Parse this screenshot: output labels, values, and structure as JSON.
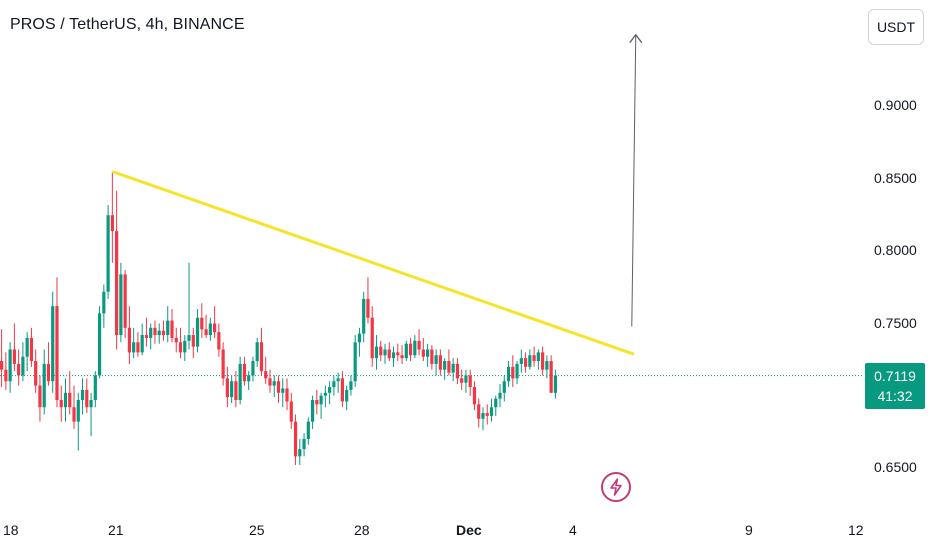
{
  "header": {
    "title": "PROS / TetherUS, 4h, BINANCE"
  },
  "currency_button": {
    "label": "USDT"
  },
  "price_badge": {
    "price": "0.7119",
    "countdown": "41:32"
  },
  "colors": {
    "up": "#089981",
    "down": "#f23645",
    "trendline": "#f5e42c",
    "arrow": "#ffffff",
    "arrow_stroke": "#5d606b"
  },
  "chart_data": {
    "type": "candlestick",
    "title": "PROS / TetherUS, 4h, BINANCE",
    "y_ticks": [
      "0.9000",
      "0.8500",
      "0.8000",
      "0.7500",
      "0.6500"
    ],
    "x_ticks": [
      "18",
      "21",
      "25",
      "28",
      "Dec",
      "4",
      "9",
      "12"
    ],
    "ylim": [
      0.633,
      0.97
    ],
    "last_price": 0.7119,
    "candles_ohlc": [
      [
        0.722,
        0.744,
        0.704,
        0.716
      ],
      [
        0.716,
        0.728,
        0.702,
        0.708
      ],
      [
        0.708,
        0.735,
        0.7,
        0.73
      ],
      [
        0.73,
        0.748,
        0.715,
        0.72
      ],
      [
        0.72,
        0.73,
        0.705,
        0.712
      ],
      [
        0.712,
        0.735,
        0.708,
        0.725
      ],
      [
        0.725,
        0.742,
        0.715,
        0.738
      ],
      [
        0.738,
        0.745,
        0.718,
        0.722
      ],
      [
        0.722,
        0.73,
        0.7,
        0.705
      ],
      [
        0.705,
        0.712,
        0.68,
        0.69
      ],
      [
        0.69,
        0.73,
        0.685,
        0.72
      ],
      [
        0.72,
        0.735,
        0.705,
        0.708
      ],
      [
        0.708,
        0.77,
        0.7,
        0.76
      ],
      [
        0.76,
        0.78,
        0.69,
        0.695
      ],
      [
        0.695,
        0.705,
        0.68,
        0.69
      ],
      [
        0.69,
        0.71,
        0.68,
        0.7
      ],
      [
        0.7,
        0.715,
        0.685,
        0.69
      ],
      [
        0.69,
        0.705,
        0.675,
        0.68
      ],
      [
        0.68,
        0.7,
        0.66,
        0.695
      ],
      [
        0.695,
        0.71,
        0.685,
        0.702
      ],
      [
        0.702,
        0.71,
        0.686,
        0.69
      ],
      [
        0.69,
        0.7,
        0.67,
        0.695
      ],
      [
        0.695,
        0.715,
        0.69,
        0.712
      ],
      [
        0.712,
        0.76,
        0.71,
        0.755
      ],
      [
        0.755,
        0.775,
        0.745,
        0.77
      ],
      [
        0.77,
        0.83,
        0.765,
        0.823
      ],
      [
        0.823,
        0.853,
        0.79,
        0.812
      ],
      [
        0.812,
        0.84,
        0.73,
        0.74
      ],
      [
        0.74,
        0.79,
        0.735,
        0.782
      ],
      [
        0.782,
        0.785,
        0.738,
        0.745
      ],
      [
        0.745,
        0.76,
        0.72,
        0.728
      ],
      [
        0.728,
        0.745,
        0.724,
        0.735
      ],
      [
        0.735,
        0.742,
        0.725,
        0.728
      ],
      [
        0.728,
        0.748,
        0.726,
        0.74
      ],
      [
        0.74,
        0.752,
        0.732,
        0.738
      ],
      [
        0.738,
        0.748,
        0.73,
        0.745
      ],
      [
        0.745,
        0.75,
        0.734,
        0.74
      ],
      [
        0.74,
        0.748,
        0.734,
        0.743
      ],
      [
        0.743,
        0.75,
        0.736,
        0.74
      ],
      [
        0.74,
        0.76,
        0.735,
        0.75
      ],
      [
        0.75,
        0.758,
        0.735,
        0.738
      ],
      [
        0.738,
        0.745,
        0.728,
        0.735
      ],
      [
        0.735,
        0.745,
        0.724,
        0.728
      ],
      [
        0.728,
        0.74,
        0.722,
        0.736
      ],
      [
        0.736,
        0.79,
        0.73,
        0.74
      ],
      [
        0.74,
        0.745,
        0.724,
        0.732
      ],
      [
        0.732,
        0.758,
        0.728,
        0.752
      ],
      [
        0.752,
        0.762,
        0.738,
        0.744
      ],
      [
        0.744,
        0.754,
        0.738,
        0.74
      ],
      [
        0.74,
        0.752,
        0.736,
        0.748
      ],
      [
        0.748,
        0.76,
        0.738,
        0.742
      ],
      [
        0.742,
        0.748,
        0.725,
        0.73
      ],
      [
        0.73,
        0.735,
        0.705,
        0.71
      ],
      [
        0.71,
        0.718,
        0.69,
        0.697
      ],
      [
        0.697,
        0.712,
        0.693,
        0.708
      ],
      [
        0.708,
        0.715,
        0.69,
        0.695
      ],
      [
        0.695,
        0.725,
        0.692,
        0.72
      ],
      [
        0.72,
        0.725,
        0.705,
        0.708
      ],
      [
        0.708,
        0.715,
        0.702,
        0.712
      ],
      [
        0.712,
        0.725,
        0.708,
        0.722
      ],
      [
        0.722,
        0.738,
        0.718,
        0.735
      ],
      [
        0.735,
        0.745,
        0.712,
        0.715
      ],
      [
        0.715,
        0.725,
        0.706,
        0.71
      ],
      [
        0.71,
        0.716,
        0.7,
        0.705
      ],
      [
        0.705,
        0.712,
        0.697,
        0.708
      ],
      [
        0.708,
        0.712,
        0.693,
        0.7
      ],
      [
        0.7,
        0.71,
        0.69,
        0.703
      ],
      [
        0.703,
        0.71,
        0.688,
        0.694
      ],
      [
        0.694,
        0.7,
        0.675,
        0.68
      ],
      [
        0.68,
        0.685,
        0.65,
        0.656
      ],
      [
        0.656,
        0.668,
        0.65,
        0.661
      ],
      [
        0.661,
        0.672,
        0.656,
        0.668
      ],
      [
        0.668,
        0.683,
        0.664,
        0.68
      ],
      [
        0.68,
        0.698,
        0.675,
        0.695
      ],
      [
        0.695,
        0.702,
        0.685,
        0.692
      ],
      [
        0.692,
        0.7,
        0.682,
        0.698
      ],
      [
        0.698,
        0.705,
        0.69,
        0.7
      ],
      [
        0.7,
        0.708,
        0.692,
        0.704
      ],
      [
        0.704,
        0.712,
        0.698,
        0.708
      ],
      [
        0.708,
        0.714,
        0.7,
        0.71
      ],
      [
        0.71,
        0.715,
        0.69,
        0.694
      ],
      [
        0.694,
        0.705,
        0.688,
        0.702
      ],
      [
        0.702,
        0.712,
        0.698,
        0.708
      ],
      [
        0.708,
        0.74,
        0.704,
        0.735
      ],
      [
        0.735,
        0.745,
        0.725,
        0.741
      ],
      [
        0.741,
        0.77,
        0.735,
        0.765
      ],
      [
        0.765,
        0.78,
        0.748,
        0.752
      ],
      [
        0.752,
        0.76,
        0.718,
        0.724
      ],
      [
        0.724,
        0.74,
        0.716,
        0.732
      ],
      [
        0.732,
        0.736,
        0.722,
        0.726
      ],
      [
        0.726,
        0.734,
        0.72,
        0.73
      ],
      [
        0.73,
        0.735,
        0.722,
        0.724
      ],
      [
        0.724,
        0.732,
        0.718,
        0.728
      ],
      [
        0.728,
        0.734,
        0.722,
        0.726
      ],
      [
        0.726,
        0.733,
        0.72,
        0.724
      ],
      [
        0.724,
        0.736,
        0.722,
        0.734
      ],
      [
        0.734,
        0.738,
        0.722,
        0.726
      ],
      [
        0.726,
        0.74,
        0.724,
        0.736
      ],
      [
        0.736,
        0.744,
        0.726,
        0.73
      ],
      [
        0.73,
        0.738,
        0.722,
        0.725
      ],
      [
        0.725,
        0.734,
        0.718,
        0.73
      ],
      [
        0.73,
        0.733,
        0.716,
        0.72
      ],
      [
        0.72,
        0.73,
        0.712,
        0.726
      ],
      [
        0.726,
        0.73,
        0.712,
        0.716
      ],
      [
        0.716,
        0.724,
        0.709,
        0.722
      ],
      [
        0.722,
        0.73,
        0.712,
        0.714
      ],
      [
        0.714,
        0.724,
        0.708,
        0.72
      ],
      [
        0.72,
        0.724,
        0.706,
        0.71
      ],
      [
        0.71,
        0.716,
        0.702,
        0.707
      ],
      [
        0.707,
        0.716,
        0.7,
        0.712
      ],
      [
        0.712,
        0.716,
        0.698,
        0.704
      ],
      [
        0.704,
        0.708,
        0.688,
        0.692
      ],
      [
        0.692,
        0.696,
        0.676,
        0.682
      ],
      [
        0.682,
        0.69,
        0.674,
        0.686
      ],
      [
        0.686,
        0.692,
        0.678,
        0.684
      ],
      [
        0.684,
        0.696,
        0.68,
        0.69
      ],
      [
        0.69,
        0.698,
        0.684,
        0.696
      ],
      [
        0.696,
        0.706,
        0.69,
        0.7
      ],
      [
        0.7,
        0.712,
        0.694,
        0.708
      ],
      [
        0.708,
        0.722,
        0.704,
        0.718
      ],
      [
        0.718,
        0.726,
        0.704,
        0.71
      ],
      [
        0.71,
        0.722,
        0.706,
        0.72
      ],
      [
        0.72,
        0.73,
        0.714,
        0.724
      ],
      [
        0.724,
        0.728,
        0.714,
        0.718
      ],
      [
        0.718,
        0.73,
        0.716,
        0.726
      ],
      [
        0.726,
        0.732,
        0.718,
        0.722
      ],
      [
        0.722,
        0.73,
        0.716,
        0.728
      ],
      [
        0.728,
        0.732,
        0.712,
        0.716
      ],
      [
        0.716,
        0.726,
        0.71,
        0.722
      ],
      [
        0.722,
        0.726,
        0.7,
        0.7
      ],
      [
        0.7,
        0.716,
        0.696,
        0.712
      ]
    ],
    "annotations": [
      {
        "type": "trendline",
        "from": {
          "candle": 26,
          "price": 0.853
        },
        "to": {
          "candle": 143,
          "price": 0.727
        }
      },
      {
        "type": "arrow",
        "from": {
          "candle": 143,
          "price": 0.746
        },
        "to": {
          "candle": 143,
          "price": 0.948
        }
      }
    ]
  }
}
